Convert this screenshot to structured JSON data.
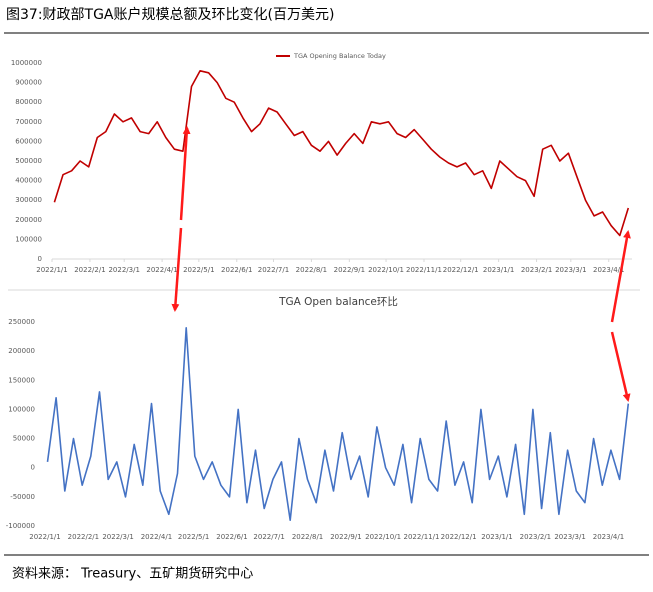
{
  "title": "图37:财政部TGA账户规模总额及环比变化(百万美元)",
  "source": "资料来源： Treasury、五矿期货研究中心",
  "chart_data": [
    {
      "type": "line",
      "x": [
        "2022/1/3",
        "2022/1/10",
        "2022/1/17",
        "2022/1/24",
        "2022/1/31",
        "2022/2/7",
        "2022/2/14",
        "2022/2/21",
        "2022/2/28",
        "2022/3/7",
        "2022/3/14",
        "2022/3/21",
        "2022/3/28",
        "2022/4/4",
        "2022/4/11",
        "2022/4/18",
        "2022/4/25",
        "2022/5/2",
        "2022/5/9",
        "2022/5/16",
        "2022/5/23",
        "2022/5/30",
        "2022/6/6",
        "2022/6/13",
        "2022/6/20",
        "2022/6/27",
        "2022/7/4",
        "2022/7/11",
        "2022/7/18",
        "2022/7/25",
        "2022/8/1",
        "2022/8/8",
        "2022/8/15",
        "2022/8/22",
        "2022/8/29",
        "2022/9/5",
        "2022/9/12",
        "2022/9/19",
        "2022/9/26",
        "2022/10/3",
        "2022/10/10",
        "2022/10/17",
        "2022/10/24",
        "2022/10/31",
        "2022/11/7",
        "2022/11/14",
        "2022/11/21",
        "2022/11/28",
        "2022/12/5",
        "2022/12/12",
        "2022/12/19",
        "2022/12/26",
        "2023/1/2",
        "2023/1/9",
        "2023/1/16",
        "2023/1/23",
        "2023/1/30",
        "2023/2/6",
        "2023/2/13",
        "2023/2/20",
        "2023/2/27",
        "2023/3/6",
        "2023/3/13",
        "2023/3/20",
        "2023/3/27",
        "2023/4/3",
        "2023/4/10",
        "2023/4/17"
      ],
      "series": [
        {
          "name": "TGA Opening Balance Today",
          "color": "#c00000",
          "values": [
            290000,
            430000,
            450000,
            500000,
            470000,
            620000,
            650000,
            740000,
            700000,
            720000,
            650000,
            640000,
            700000,
            620000,
            560000,
            550000,
            880000,
            960000,
            950000,
            900000,
            820000,
            800000,
            720000,
            650000,
            690000,
            770000,
            750000,
            690000,
            630000,
            650000,
            580000,
            550000,
            600000,
            530000,
            590000,
            640000,
            590000,
            700000,
            690000,
            700000,
            640000,
            620000,
            660000,
            610000,
            560000,
            520000,
            490000,
            470000,
            490000,
            430000,
            450000,
            360000,
            500000,
            460000,
            420000,
            400000,
            320000,
            560000,
            580000,
            500000,
            540000,
            420000,
            300000,
            220000,
            240000,
            170000,
            120000,
            260000
          ]
        }
      ],
      "xlim": [
        "2022/1/1",
        "2023/4/20"
      ],
      "xticks": [
        "2022/1/1",
        "2022/2/1",
        "2022/3/1",
        "2022/4/1",
        "2022/5/1",
        "2022/6/1",
        "2022/7/1",
        "2022/8/1",
        "2022/9/1",
        "2022/10/1",
        "2022/11/1",
        "2022/12/1",
        "2023/1/1",
        "2023/2/1",
        "2023/3/1",
        "2023/4/1"
      ],
      "ylim": [
        0,
        1000000
      ],
      "yticks": [
        0,
        100000,
        200000,
        300000,
        400000,
        500000,
        600000,
        700000,
        800000,
        900000,
        1000000
      ],
      "legend": "top"
    },
    {
      "type": "line",
      "title": "TGA Open balance环比",
      "x": [
        "2022/1/3",
        "2022/1/10",
        "2022/1/17",
        "2022/1/24",
        "2022/1/31",
        "2022/2/7",
        "2022/2/14",
        "2022/2/21",
        "2022/2/28",
        "2022/3/7",
        "2022/3/14",
        "2022/3/21",
        "2022/3/28",
        "2022/4/4",
        "2022/4/11",
        "2022/4/18",
        "2022/4/25",
        "2022/5/2",
        "2022/5/9",
        "2022/5/16",
        "2022/5/23",
        "2022/5/30",
        "2022/6/6",
        "2022/6/13",
        "2022/6/20",
        "2022/6/27",
        "2022/7/4",
        "2022/7/11",
        "2022/7/18",
        "2022/7/25",
        "2022/8/1",
        "2022/8/8",
        "2022/8/15",
        "2022/8/22",
        "2022/8/29",
        "2022/9/5",
        "2022/9/12",
        "2022/9/19",
        "2022/9/26",
        "2022/10/3",
        "2022/10/10",
        "2022/10/17",
        "2022/10/24",
        "2022/10/31",
        "2022/11/7",
        "2022/11/14",
        "2022/11/21",
        "2022/11/28",
        "2022/12/5",
        "2022/12/12",
        "2022/12/19",
        "2022/12/26",
        "2023/1/2",
        "2023/1/9",
        "2023/1/16",
        "2023/1/23",
        "2023/1/30",
        "2023/2/6",
        "2023/2/13",
        "2023/2/20",
        "2023/2/27",
        "2023/3/6",
        "2023/3/13",
        "2023/3/20",
        "2023/3/27",
        "2023/4/3",
        "2023/4/10",
        "2023/4/17"
      ],
      "color": "#4472c4",
      "values": [
        10000,
        120000,
        -40000,
        50000,
        -30000,
        20000,
        130000,
        -20000,
        10000,
        -50000,
        40000,
        -30000,
        110000,
        -40000,
        -80000,
        -10000,
        240000,
        20000,
        -20000,
        10000,
        -30000,
        -50000,
        100000,
        -60000,
        30000,
        -70000,
        -20000,
        10000,
        -90000,
        50000,
        -20000,
        -60000,
        30000,
        -40000,
        60000,
        -20000,
        20000,
        -50000,
        70000,
        0,
        -30000,
        40000,
        -60000,
        50000,
        -20000,
        -40000,
        80000,
        -30000,
        10000,
        -60000,
        100000,
        -20000,
        20000,
        -50000,
        40000,
        -80000,
        100000,
        -70000,
        60000,
        -80000,
        30000,
        -40000,
        -60000,
        50000,
        -30000,
        30000,
        -20000,
        110000
      ],
      "xlim": [
        "2022/1/1",
        "2023/4/20"
      ],
      "xticks": [
        "2022/1/1",
        "2022/2/1",
        "2022/3/1",
        "2022/4/1",
        "2022/5/1",
        "2022/6/1",
        "2022/7/1",
        "2022/8/1",
        "2022/9/1",
        "2022/10/1",
        "2022/11/1",
        "2022/12/1",
        "2023/1/1",
        "2023/2/1",
        "2023/3/1",
        "2023/4/1"
      ],
      "ylim": [
        -100000,
        250000
      ],
      "yticks": [
        -100000,
        -50000,
        0,
        50000,
        100000,
        150000,
        200000,
        250000
      ]
    }
  ]
}
